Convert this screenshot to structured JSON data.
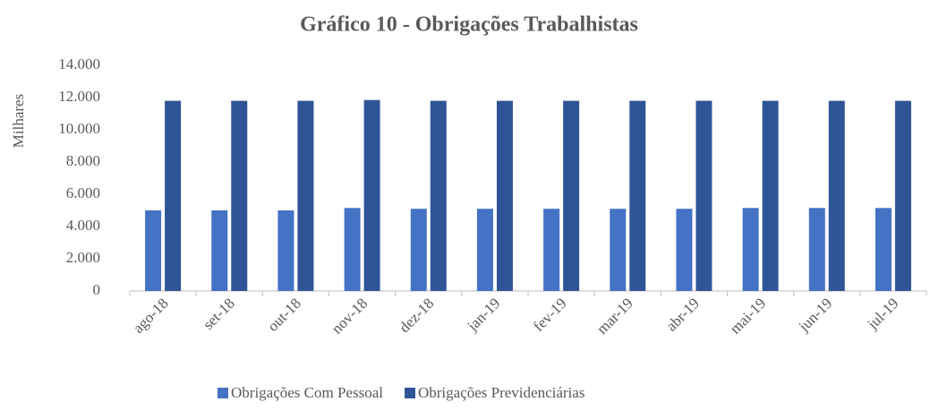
{
  "chart_data": {
    "type": "bar",
    "title": "Gráfico 10 - Obrigações Trabalhistas",
    "y_label": "Milhares",
    "categories": [
      "ago-18",
      "set-18",
      "out-18",
      "nov-18",
      "dez-18",
      "jan-19",
      "fev-19",
      "mar-19",
      "abr-19",
      "mai-19",
      "jun-19",
      "jul-19"
    ],
    "series": [
      {
        "name": "Obrigações Com Pessoal",
        "color": "#4472c4",
        "values": [
          5000,
          5000,
          5000,
          5150,
          5100,
          5100,
          5100,
          5100,
          5100,
          5150,
          5150,
          5150
        ]
      },
      {
        "name": "Obrigações Previdenciárias",
        "color": "#2f5597",
        "values": [
          11800,
          11800,
          11800,
          11850,
          11800,
          11800,
          11800,
          11800,
          11800,
          11800,
          11800,
          11800
        ]
      }
    ],
    "ylim": [
      0,
      14000
    ],
    "yticks": [
      0,
      {
        "value": 2000,
        "label": "2.000"
      },
      {
        "value": 4000,
        "label": "4.000"
      },
      {
        "value": 6000,
        "label": "6.000"
      },
      {
        "value": 8000,
        "label": "8.000"
      },
      {
        "value": 10000,
        "label": "10.000"
      },
      {
        "value": 12000,
        "label": "12.000"
      },
      {
        "value": 14000,
        "label": "14.000"
      }
    ],
    "grid": false,
    "legend": "bottom"
  }
}
